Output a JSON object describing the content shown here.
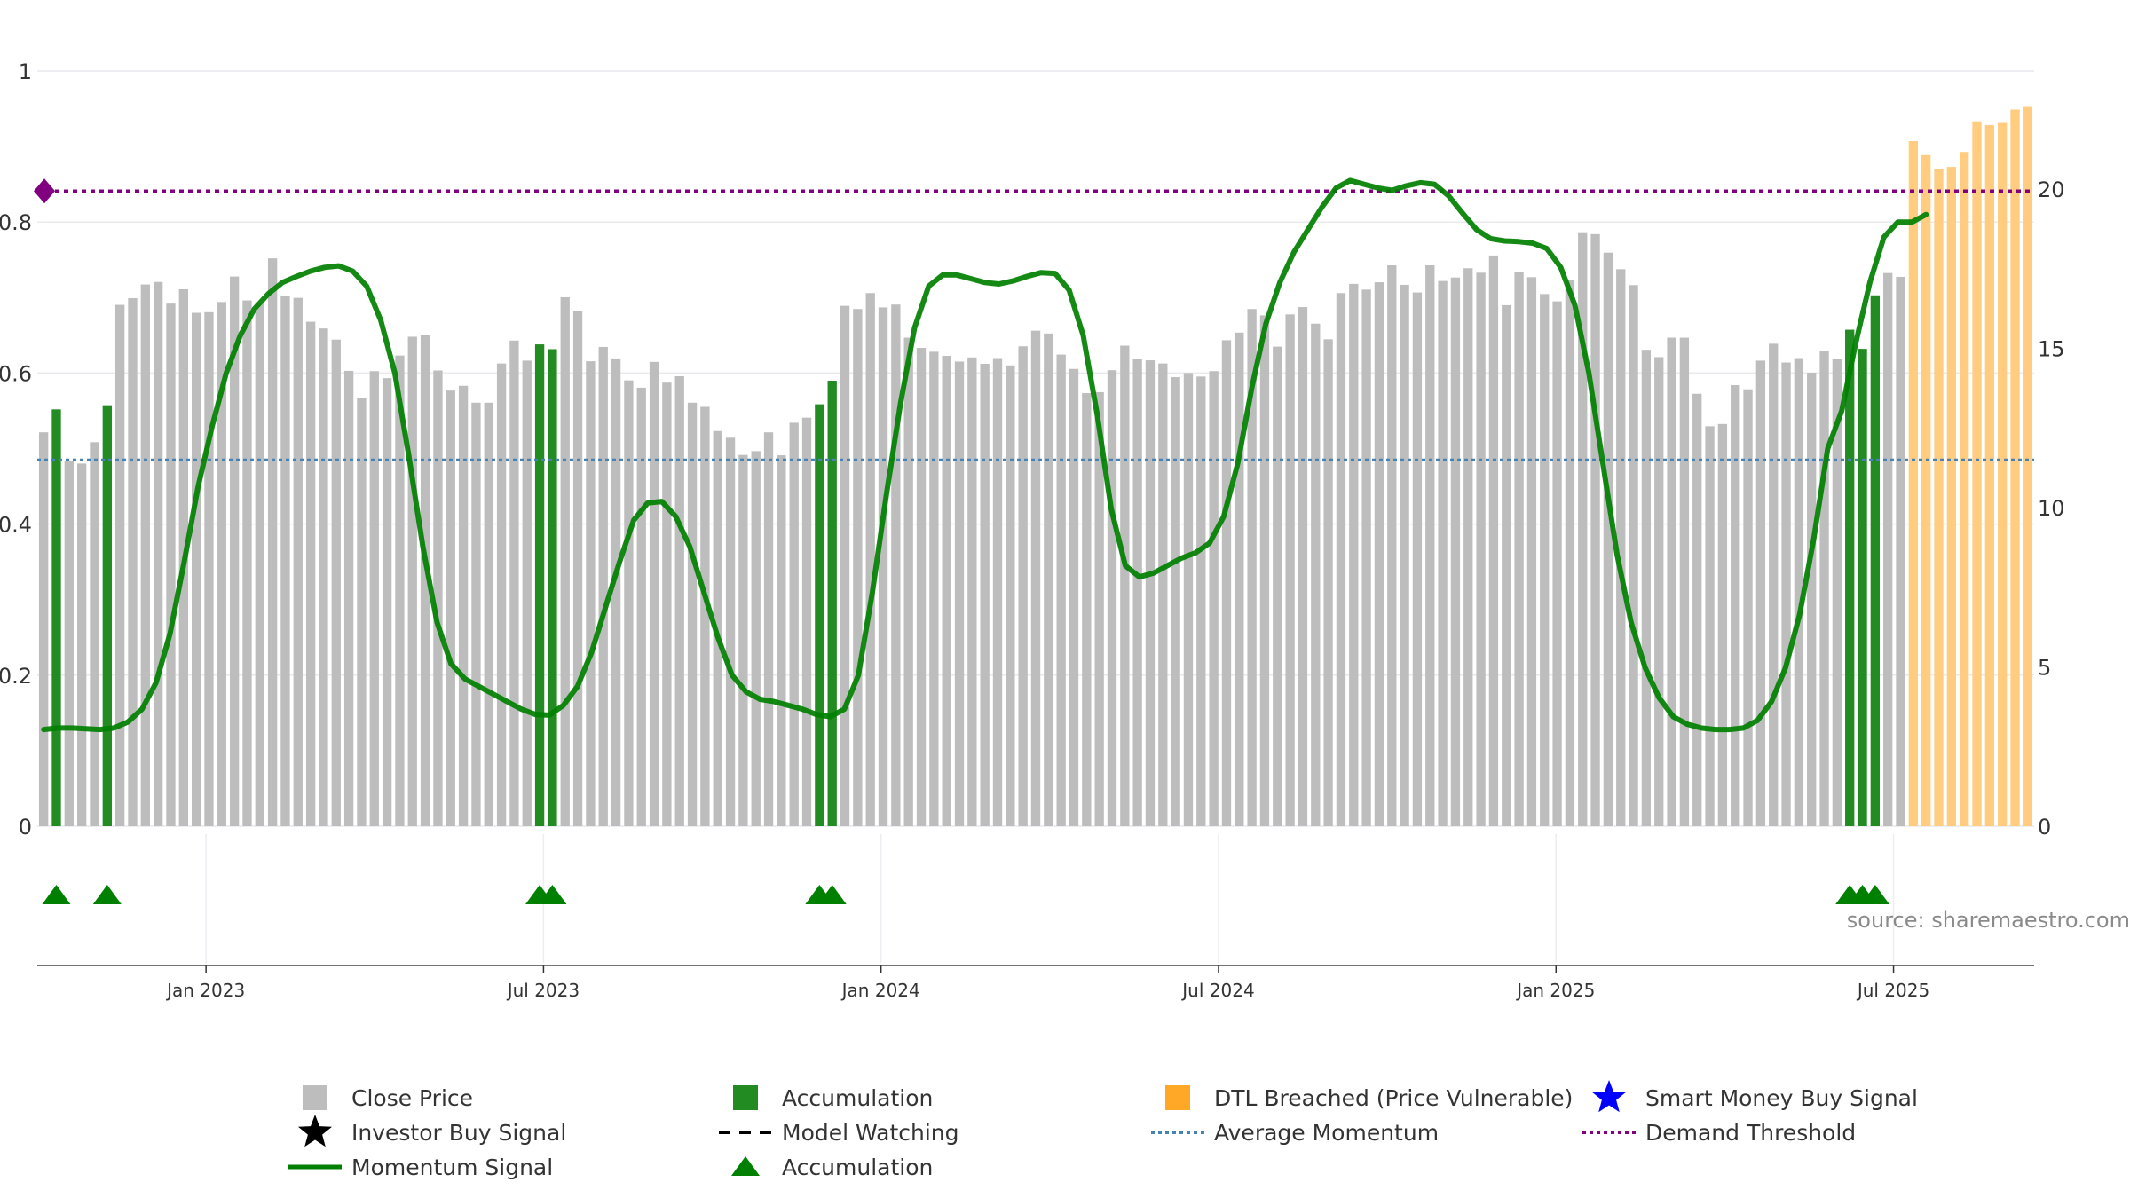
{
  "chart_data": {
    "type": "bar",
    "title": "",
    "source": "source: sharemaestro.com",
    "left_axis": {
      "ticks": [
        "0",
        "0.2",
        "0.4",
        "0.6",
        "0.8",
        "1"
      ],
      "range": [
        0,
        1
      ]
    },
    "right_axis": {
      "ticks": [
        "0",
        "5",
        "10",
        "15",
        "20"
      ],
      "range": [
        0,
        23.7
      ]
    },
    "x_axis": {
      "ticks": [
        "Jan 2023",
        "Jul 2023",
        "Jan 2024",
        "Jul 2024",
        "Jan 2025",
        "Jul 2025"
      ]
    },
    "average_momentum": 0.485,
    "demand_threshold": 0.841,
    "colors": {
      "close_price": "#bdbdbd",
      "accumulation": "#228b22",
      "dtl_breached": "#ffcc80",
      "momentum": "#008000",
      "average_momentum": "#4682b4",
      "demand_threshold": "#800080",
      "smart_money": "#0000ff"
    },
    "close_prices": [
      12.36,
      13.08,
      11.47,
      11.38,
      12.05,
      13.21,
      16.36,
      16.57,
      17.0,
      17.08,
      16.4,
      16.85,
      16.11,
      16.13,
      16.45,
      17.25,
      16.5,
      16.42,
      17.82,
      16.64,
      16.58,
      15.83,
      15.62,
      15.27,
      14.29,
      13.45,
      14.28,
      14.06,
      14.77,
      15.36,
      15.42,
      14.3,
      13.67,
      13.82,
      13.29,
      13.29,
      14.52,
      15.24,
      14.61,
      15.12,
      14.97,
      16.6,
      16.17,
      14.59,
      15.04,
      14.68,
      13.99,
      13.76,
      14.57,
      13.92,
      14.12,
      13.29,
      13.16,
      12.4,
      12.19,
      11.65,
      11.77,
      12.36,
      11.64,
      12.66,
      12.82,
      13.24,
      13.98,
      16.33,
      16.23,
      16.73,
      16.28,
      16.37,
      15.33,
      15.01,
      14.89,
      14.76,
      14.58,
      14.71,
      14.51,
      14.69,
      14.46,
      15.06,
      15.55,
      15.46,
      14.8,
      14.35,
      13.59,
      13.62,
      14.31,
      15.08,
      14.67,
      14.62,
      14.52,
      14.09,
      14.22,
      14.11,
      14.28,
      15.25,
      15.49,
      16.23,
      16.03,
      15.05,
      16.06,
      16.29,
      15.77,
      15.28,
      16.73,
      17.02,
      16.84,
      17.07,
      17.6,
      16.99,
      16.75,
      17.6,
      17.11,
      17.22,
      17.51,
      17.37,
      17.91,
      16.35,
      17.4,
      17.23,
      16.7,
      16.47,
      17.13,
      18.64,
      18.58,
      18.0,
      17.48,
      16.98,
      14.95,
      14.72,
      15.33,
      15.33,
      13.57,
      12.55,
      12.62,
      13.84,
      13.71,
      14.61,
      15.14,
      14.55,
      14.69,
      14.23,
      14.92,
      14.67,
      15.58,
      14.98,
      16.66,
      17.36,
      17.24,
      21.5,
      21.06,
      20.61,
      20.69,
      21.16,
      22.12,
      22.0,
      22.07,
      22.49,
      22.57
    ],
    "accumulation_bar_indices": [
      1,
      5,
      39,
      40,
      61,
      62,
      142,
      143,
      144
    ],
    "dtl_start_index": 147,
    "accumulation_marker_indices": [
      1,
      5,
      39,
      40,
      61,
      62,
      142,
      143,
      144
    ],
    "momentum_signal": [
      0.128,
      0.13,
      0.13,
      0.129,
      0.128,
      0.13,
      0.138,
      0.155,
      0.19,
      0.255,
      0.35,
      0.45,
      0.53,
      0.6,
      0.65,
      0.685,
      0.705,
      0.72,
      0.728,
      0.735,
      0.74,
      0.742,
      0.735,
      0.715,
      0.67,
      0.6,
      0.49,
      0.37,
      0.27,
      0.215,
      0.195,
      0.185,
      0.175,
      0.165,
      0.155,
      0.148,
      0.147,
      0.16,
      0.185,
      0.23,
      0.29,
      0.35,
      0.405,
      0.428,
      0.43,
      0.41,
      0.37,
      0.31,
      0.25,
      0.2,
      0.178,
      0.168,
      0.165,
      0.16,
      0.155,
      0.148,
      0.145,
      0.155,
      0.2,
      0.31,
      0.44,
      0.56,
      0.66,
      0.715,
      0.73,
      0.73,
      0.725,
      0.72,
      0.718,
      0.722,
      0.728,
      0.733,
      0.732,
      0.71,
      0.65,
      0.545,
      0.42,
      0.345,
      0.33,
      0.335,
      0.345,
      0.355,
      0.362,
      0.375,
      0.41,
      0.48,
      0.58,
      0.665,
      0.72,
      0.76,
      0.79,
      0.82,
      0.845,
      0.855,
      0.85,
      0.845,
      0.842,
      0.848,
      0.852,
      0.85,
      0.835,
      0.812,
      0.79,
      0.778,
      0.775,
      0.774,
      0.772,
      0.765,
      0.74,
      0.69,
      0.6,
      0.48,
      0.36,
      0.27,
      0.21,
      0.17,
      0.145,
      0.135,
      0.13,
      0.128,
      0.128,
      0.13,
      0.14,
      0.165,
      0.21,
      0.28,
      0.38,
      0.5,
      0.55,
      0.64,
      0.72,
      0.78,
      0.8,
      0.8,
      0.81
    ],
    "momentum_end_index": 148,
    "legend": [
      {
        "label": "Close Price",
        "marker": "square",
        "color": "#bdbdbd"
      },
      {
        "label": "Accumulation",
        "marker": "square",
        "color": "#228b22"
      },
      {
        "label": "DTL Breached (Price Vulnerable)",
        "marker": "square",
        "color": "#ffa726"
      },
      {
        "label": "Smart Money Buy Signal",
        "marker": "star",
        "color": "#0000ff"
      },
      {
        "label": "Investor Buy Signal",
        "marker": "star",
        "color": "#000000"
      },
      {
        "label": "Model Watching",
        "marker": "dash",
        "color": "#000000"
      },
      {
        "label": "Average Momentum",
        "marker": "dotted",
        "color": "#4682b4"
      },
      {
        "label": "Demand Threshold",
        "marker": "dotted",
        "color": "#800080"
      },
      {
        "label": "Momentum Signal",
        "marker": "line",
        "color": "#008000"
      },
      {
        "label": "Accumulation",
        "marker": "triangle",
        "color": "#008000"
      }
    ]
  }
}
